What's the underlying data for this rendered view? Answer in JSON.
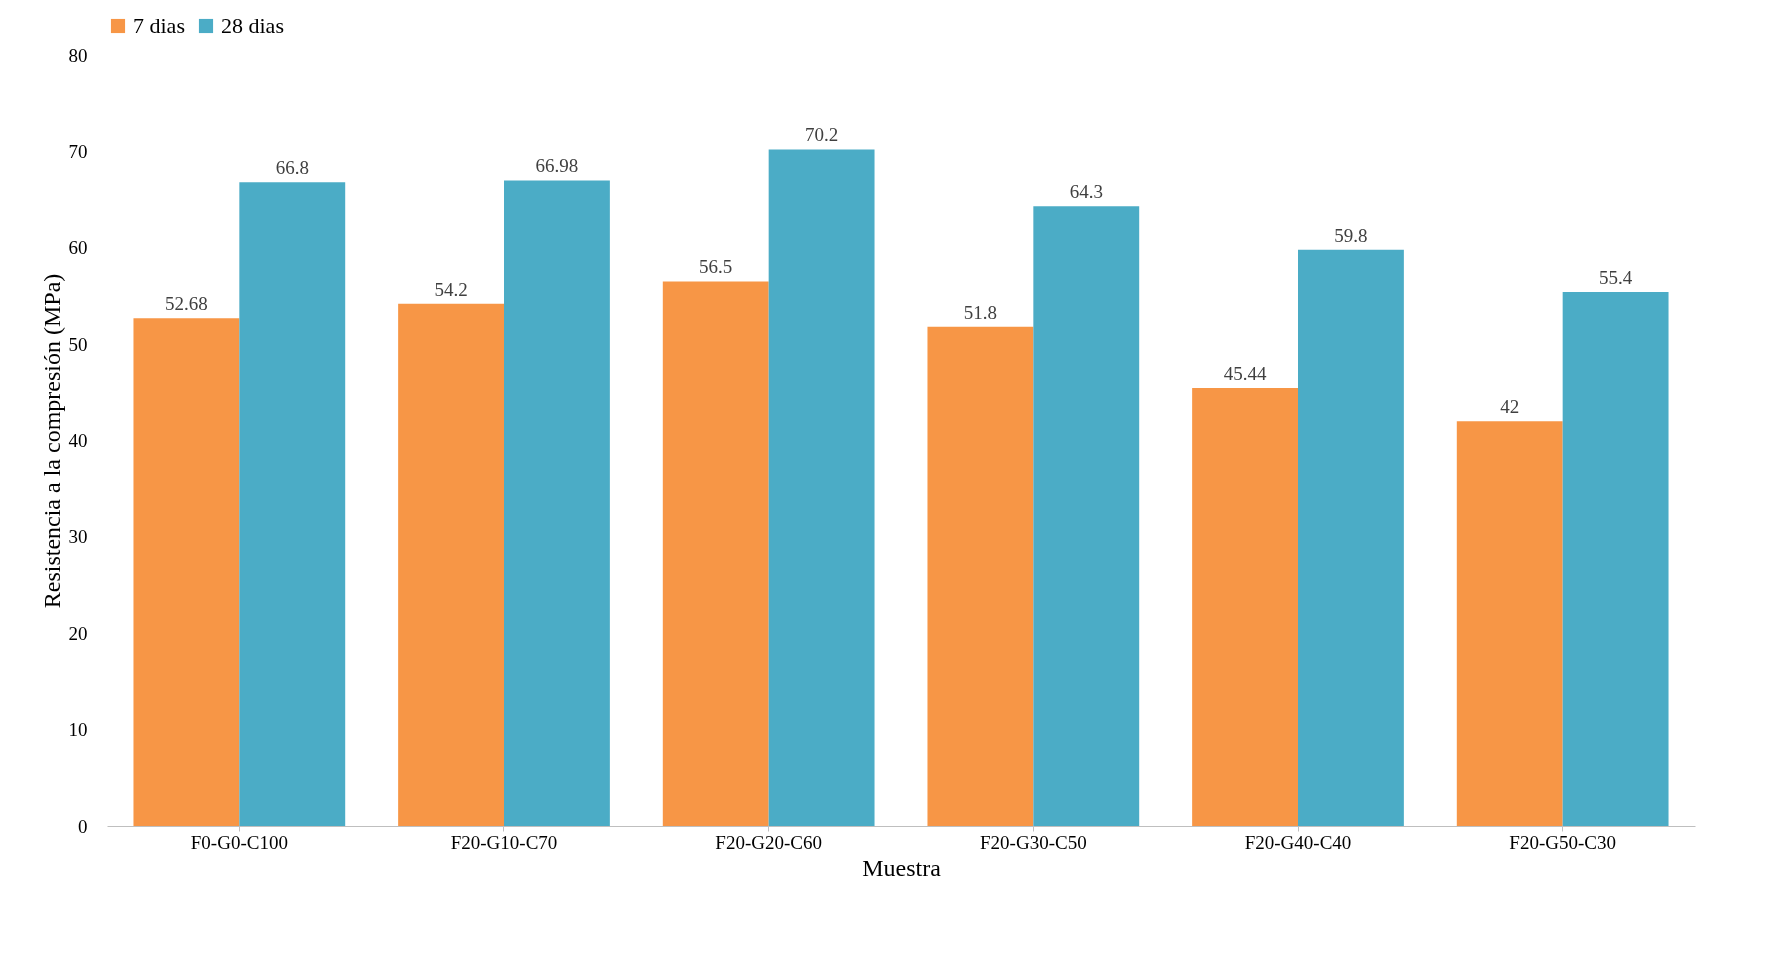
{
  "chart_data": {
    "type": "bar",
    "xlabel": "Muestra",
    "ylabel": "Resistencia a la compresión (MPa)",
    "categories": [
      "F0-G0-C100",
      "F20-G10-C70",
      "F20-G20-C60",
      "F20-G30-C50",
      "F20-G40-C40",
      "F20-G50-C30"
    ],
    "series": [
      {
        "name": "7 dias",
        "color": "#f79646",
        "values": [
          52.68,
          54.2,
          56.5,
          51.8,
          45.44,
          42
        ]
      },
      {
        "name": "28 dias",
        "color": "#4bacc6",
        "values": [
          66.8,
          66.98,
          70.2,
          64.3,
          59.8,
          55.4
        ]
      }
    ],
    "ylim": [
      0,
      80
    ],
    "yticks": [
      0,
      10,
      20,
      30,
      40,
      50,
      60,
      70,
      80
    ],
    "grid": false,
    "legend": "top",
    "data_labels": true
  }
}
